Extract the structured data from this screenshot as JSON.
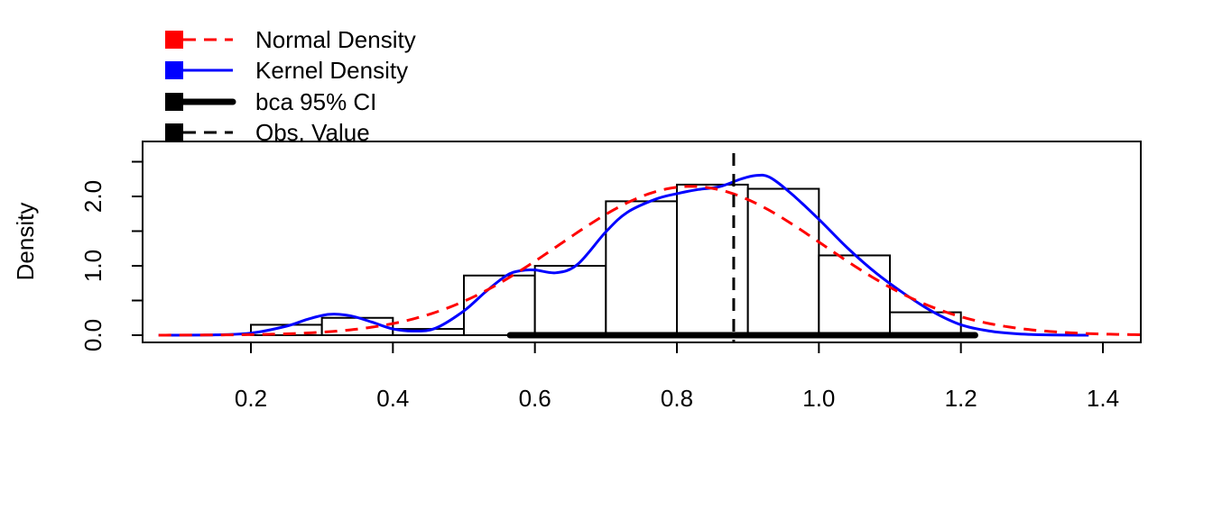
{
  "chart_data": {
    "type": "histogram",
    "ylabel": "Density",
    "xlim": [
      0.05,
      1.45
    ],
    "ylim": [
      -0.1,
      2.8
    ],
    "x_ticks": [
      0.2,
      0.4,
      0.6,
      0.8,
      1.0,
      1.2,
      1.4
    ],
    "x_tick_labels": [
      "0.2",
      "0.4",
      "0.6",
      "0.8",
      "1.0",
      "1.2",
      "1.4"
    ],
    "y_ticks": [
      0.0,
      0.5,
      1.0,
      1.5,
      2.0,
      2.5
    ],
    "y_tick_labels": [
      "0.0",
      "",
      "1.0",
      "",
      "2.0",
      ""
    ],
    "bins": [
      {
        "from": 0.2,
        "to": 0.3,
        "density": 0.15
      },
      {
        "from": 0.3,
        "to": 0.4,
        "density": 0.25
      },
      {
        "from": 0.4,
        "to": 0.5,
        "density": 0.09
      },
      {
        "from": 0.5,
        "to": 0.6,
        "density": 0.86
      },
      {
        "from": 0.6,
        "to": 0.7,
        "density": 1.0
      },
      {
        "from": 0.7,
        "to": 0.8,
        "density": 1.93
      },
      {
        "from": 0.8,
        "to": 0.9,
        "density": 2.17
      },
      {
        "from": 0.9,
        "to": 1.0,
        "density": 2.11
      },
      {
        "from": 1.0,
        "to": 1.1,
        "density": 1.15
      },
      {
        "from": 1.1,
        "to": 1.2,
        "density": 0.33
      }
    ],
    "normal_density": {
      "name": "Normal Density",
      "color": "#ff0000",
      "style": "dashed",
      "mean": 0.82,
      "sd": 0.186
    },
    "kernel_density": {
      "name": "Kernel Density",
      "color": "#0000ff",
      "style": "solid",
      "x": [
        0.07,
        0.15,
        0.2,
        0.25,
        0.28,
        0.31,
        0.34,
        0.37,
        0.4,
        0.43,
        0.46,
        0.5,
        0.53,
        0.56,
        0.58,
        0.6,
        0.63,
        0.66,
        0.7,
        0.73,
        0.77,
        0.8,
        0.83,
        0.86,
        0.89,
        0.91,
        0.93,
        0.96,
        1.0,
        1.04,
        1.08,
        1.12,
        1.16,
        1.2,
        1.24,
        1.28,
        1.32,
        1.38
      ],
      "y": [
        0.0,
        0.005,
        0.03,
        0.13,
        0.23,
        0.3,
        0.28,
        0.19,
        0.09,
        0.06,
        0.1,
        0.35,
        0.62,
        0.86,
        0.93,
        0.94,
        0.9,
        1.02,
        1.49,
        1.77,
        1.96,
        2.04,
        2.1,
        2.14,
        2.25,
        2.3,
        2.28,
        2.05,
        1.67,
        1.26,
        0.9,
        0.6,
        0.34,
        0.15,
        0.06,
        0.02,
        0.005,
        0.0
      ]
    },
    "ci": {
      "name": "bca 95% CI",
      "color": "#000000",
      "lower": 0.565,
      "upper": 1.22
    },
    "observed": {
      "name": "Obs. Value",
      "color": "#000000",
      "value": 0.88
    },
    "legend": [
      "Normal Density",
      "Kernel Density",
      "bca 95% CI",
      "Obs. Value"
    ],
    "legend_position": "top-left"
  }
}
